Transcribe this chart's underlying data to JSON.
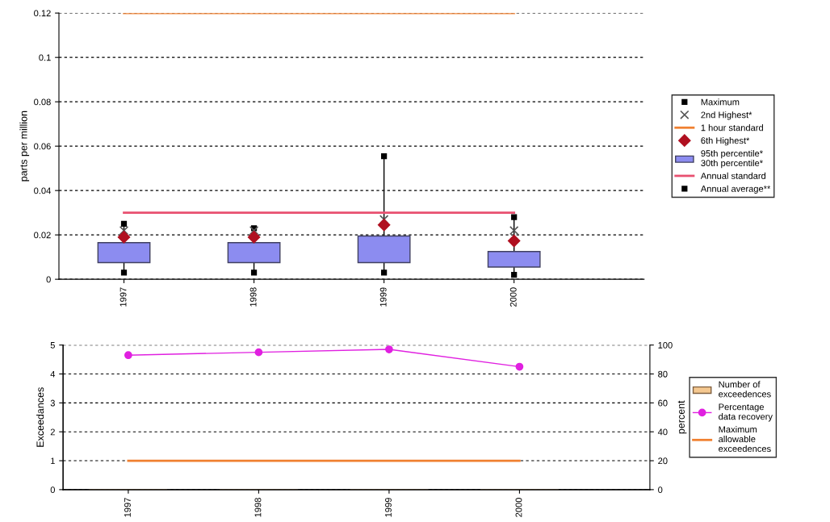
{
  "chart_data": [
    {
      "type": "box",
      "categories": [
        "1997",
        "1998",
        "1999",
        "2000"
      ],
      "ylabel": "parts per million",
      "ylim": [
        0,
        0.12
      ],
      "yticks": [
        0,
        0.02,
        0.04,
        0.06,
        0.08,
        0.1,
        0.12
      ],
      "grid": "y",
      "legend": "right",
      "series": [
        {
          "name": "Maximum",
          "type": "scatter",
          "marker": "square",
          "color": "#000000",
          "values": [
            0.025,
            0.023,
            0.0555,
            0.028
          ]
        },
        {
          "name": "2nd Highest*",
          "type": "scatter",
          "marker": "cross",
          "color": "#555555",
          "values": [
            0.022,
            0.022,
            0.027,
            0.022
          ]
        },
        {
          "name": "1 hour standard",
          "type": "line",
          "color": "#f08030",
          "values": [
            0.12,
            0.12,
            0.12,
            0.12
          ]
        },
        {
          "name": "6th Highest*",
          "type": "scatter",
          "marker": "diamond",
          "color": "#b01020",
          "values": [
            0.019,
            0.019,
            0.0245,
            0.0173
          ]
        },
        {
          "name": "95th percentile*\n30th percentile*",
          "type": "bar",
          "color": "#8c8cf0",
          "base": [
            0.0075,
            0.0075,
            0.0075,
            0.0055
          ],
          "values": [
            0.009,
            0.009,
            0.012,
            0.007
          ]
        },
        {
          "name": "Annual standard",
          "type": "line",
          "color": "#e85070",
          "values": [
            0.03,
            0.03,
            0.03,
            0.03
          ]
        },
        {
          "name": "Annual average**",
          "type": "scatter",
          "marker": "square",
          "color": "#000000",
          "values": [
            0.003,
            0.003,
            0.003,
            0.002
          ]
        }
      ]
    },
    {
      "type": "bar",
      "categories": [
        "1997",
        "1998",
        "1999",
        "2000"
      ],
      "ylabel": "Exceedances",
      "ylim": [
        0,
        5
      ],
      "yticks": [
        0,
        1,
        2,
        3,
        4,
        5
      ],
      "y2label": "percent",
      "y2lim": [
        0,
        100
      ],
      "y2ticks": [
        0,
        20,
        40,
        60,
        80,
        100
      ],
      "grid": "y",
      "legend": "right",
      "series": [
        {
          "name": "Number of\nexceedences",
          "type": "bar",
          "color": "#f5c890",
          "values": [
            0,
            0,
            0,
            0
          ]
        },
        {
          "name": "Percentage\ndata recovery",
          "type": "line",
          "axis": "y2",
          "marker": "circle",
          "color": "#e020e0",
          "values": [
            93,
            95,
            97,
            85
          ]
        },
        {
          "name": "Maximum\nallowable\nexceedences",
          "type": "line",
          "color": "#f08030",
          "values": [
            1,
            1,
            1,
            1
          ]
        }
      ]
    }
  ]
}
